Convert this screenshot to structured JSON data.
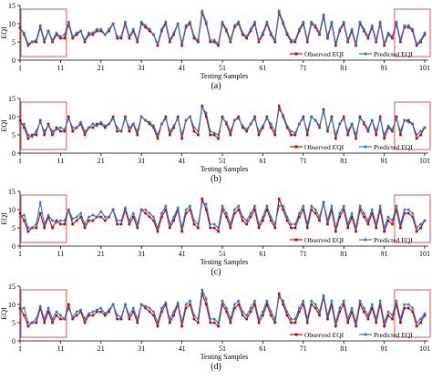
{
  "colors": {
    "observed": "#c00000",
    "predicted": "#2e75b6",
    "highlight_box": "#e06666",
    "axis": "#000000"
  },
  "chart_data": [
    {
      "type": "line",
      "panel_label": "(a)",
      "xlabel": "Testing Samples",
      "ylabel": "EQI",
      "xticks": [
        "1",
        "11",
        "21",
        "31",
        "41",
        "51",
        "61",
        "71",
        "81",
        "91",
        "101"
      ],
      "yticks": [
        "0",
        "5",
        "10",
        "15"
      ],
      "xlim": [
        1,
        101
      ],
      "ylim": [
        0,
        15
      ],
      "grid": false,
      "legend": "bottom-right",
      "highlight_ranges": [
        [
          1,
          12
        ],
        [
          94,
          103
        ]
      ],
      "series": [
        {
          "name": "Observed EQI",
          "marker": "square",
          "values": [
            9,
            7,
            4,
            5,
            5,
            9,
            5,
            8,
            5,
            7,
            6,
            6,
            10,
            6,
            7,
            8,
            5,
            7,
            7,
            8,
            8,
            7,
            8,
            10,
            6,
            6,
            10,
            6,
            8,
            5,
            10,
            9,
            8,
            7,
            4,
            8,
            10,
            5,
            7,
            10,
            4,
            9,
            10,
            6,
            5,
            13,
            10,
            5,
            5,
            4,
            10,
            8,
            5,
            9,
            10,
            7,
            6,
            8,
            10,
            5,
            7,
            10,
            7,
            5,
            13,
            10,
            7,
            5,
            5,
            8,
            10,
            5,
            10,
            9,
            7,
            12,
            6,
            10,
            4,
            8,
            10,
            5,
            8,
            4,
            10,
            8,
            6,
            9,
            5,
            10,
            4,
            7,
            6,
            10,
            5,
            9,
            9,
            8,
            4,
            5,
            7
          ]
        },
        {
          "name": "Predicted EQI",
          "marker": "diamond",
          "values": [
            8.5,
            7.5,
            4.5,
            5,
            5.5,
            9.5,
            5.5,
            8,
            5.5,
            7.5,
            6.5,
            7,
            10.5,
            6.5,
            7.5,
            8,
            5.5,
            7.5,
            7.5,
            8.5,
            8.5,
            7,
            8.5,
            10,
            6.5,
            6.5,
            10.5,
            6.5,
            8.5,
            5.5,
            10.5,
            9.5,
            8.5,
            7,
            4.5,
            8.5,
            10.5,
            5.5,
            7.5,
            10,
            4.5,
            9.5,
            10.5,
            6.5,
            5.5,
            13.5,
            10.5,
            5.5,
            5.5,
            4.5,
            10.5,
            8.5,
            5.5,
            9.5,
            10.5,
            7.5,
            6.5,
            8.5,
            10.5,
            5.5,
            7.5,
            10.5,
            7.5,
            5.5,
            13.5,
            10.5,
            7.5,
            5.5,
            5.5,
            8.5,
            10.5,
            5.5,
            10.5,
            9.5,
            7.5,
            12.5,
            6.5,
            10.5,
            4.5,
            8.5,
            10.5,
            5.5,
            8.5,
            4.5,
            10.5,
            8.5,
            6.5,
            9.5,
            5.5,
            10.5,
            4.5,
            7.5,
            6.5,
            10.5,
            5.5,
            9.5,
            9.5,
            8.5,
            4.5,
            5.5,
            7.5
          ]
        }
      ]
    },
    {
      "type": "line",
      "panel_label": "(b)",
      "xlabel": "Testing Samples",
      "ylabel": "EQI",
      "xticks": [
        "1",
        "11",
        "21",
        "31",
        "41",
        "51",
        "61",
        "71",
        "81",
        "91",
        "101"
      ],
      "yticks": [
        "0",
        "5",
        "10",
        "15"
      ],
      "xlim": [
        1,
        101
      ],
      "ylim": [
        0,
        15
      ],
      "grid": false,
      "legend": "bottom-right",
      "highlight_ranges": [
        [
          1,
          12
        ],
        [
          94,
          103
        ]
      ],
      "series": [
        {
          "name": "Observed EQI",
          "marker": "square",
          "values": [
            9,
            7,
            4,
            5,
            5,
            9,
            5,
            8,
            5,
            7,
            6,
            6,
            10,
            6,
            7,
            8,
            5,
            7,
            7,
            8,
            8,
            7,
            8,
            10,
            6,
            6,
            10,
            6,
            8,
            5,
            10,
            9,
            8,
            7,
            4,
            8,
            10,
            5,
            7,
            10,
            4,
            9,
            10,
            6,
            5,
            13,
            10,
            5,
            5,
            4,
            10,
            8,
            5,
            9,
            10,
            7,
            6,
            8,
            10,
            5,
            7,
            10,
            7,
            5,
            13,
            10,
            7,
            5,
            5,
            8,
            10,
            5,
            10,
            9,
            7,
            12,
            6,
            10,
            4,
            8,
            10,
            5,
            8,
            4,
            10,
            8,
            6,
            9,
            5,
            10,
            4,
            7,
            6,
            10,
            5,
            9,
            9,
            8,
            4,
            5,
            7
          ]
        },
        {
          "name": "Predicted EQI",
          "marker": "diamond",
          "values": [
            8,
            8,
            5,
            4.5,
            6,
            8.5,
            6,
            7.5,
            6,
            6.5,
            7,
            6.5,
            9.5,
            7,
            7,
            8.5,
            6,
            7,
            8,
            7.5,
            8.5,
            7.5,
            8,
            9.5,
            7,
            6,
            9.5,
            7,
            8,
            6,
            10,
            9,
            8.5,
            7.5,
            5,
            8,
            9.5,
            6,
            7.5,
            9.5,
            5,
            9,
            10,
            7,
            6,
            12.5,
            11,
            6,
            5.5,
            5,
            9.5,
            8.5,
            6,
            9,
            9.5,
            7.5,
            6.5,
            8,
            9.5,
            6,
            7.5,
            9.5,
            8,
            6,
            12,
            10.5,
            7.5,
            6,
            5.5,
            8,
            9.5,
            6,
            10,
            9,
            7.5,
            11.5,
            6.5,
            9.5,
            5,
            8,
            9.5,
            6,
            8,
            5,
            9.5,
            8.5,
            6.5,
            9,
            6,
            9.5,
            5,
            7.5,
            6.5,
            9.5,
            6,
            9,
            8.5,
            8,
            5,
            6,
            7
          ]
        }
      ]
    },
    {
      "type": "line",
      "panel_label": "(c)",
      "xlabel": "Testing Samples",
      "ylabel": "EQI",
      "xticks": [
        "1",
        "11",
        "21",
        "31",
        "41",
        "51",
        "61",
        "71",
        "81",
        "91",
        "101"
      ],
      "yticks": [
        "0",
        "5",
        "10",
        "15"
      ],
      "xlim": [
        1,
        101
      ],
      "ylim": [
        0,
        15
      ],
      "grid": false,
      "legend": "bottom-right",
      "highlight_ranges": [
        [
          1,
          12
        ],
        [
          94,
          103
        ]
      ],
      "series": [
        {
          "name": "Observed EQI",
          "marker": "square",
          "values": [
            9,
            7,
            4,
            5,
            5,
            9,
            5,
            8,
            5,
            7,
            6,
            6,
            10,
            6,
            7,
            8,
            5,
            7,
            7,
            8,
            8,
            7,
            8,
            10,
            6,
            6,
            10,
            6,
            8,
            5,
            10,
            9,
            8,
            7,
            4,
            8,
            10,
            5,
            7,
            10,
            4,
            9,
            10,
            6,
            5,
            13,
            10,
            5,
            5,
            4,
            10,
            8,
            5,
            9,
            10,
            7,
            6,
            8,
            10,
            5,
            7,
            10,
            7,
            5,
            13,
            10,
            7,
            5,
            5,
            8,
            10,
            5,
            10,
            9,
            7,
            12,
            6,
            10,
            4,
            8,
            10,
            5,
            8,
            4,
            10,
            8,
            6,
            9,
            5,
            10,
            4,
            7,
            6,
            10,
            5,
            9,
            9,
            8,
            4,
            5,
            7
          ]
        },
        {
          "name": "Predicted EQI",
          "marker": "diamond",
          "values": [
            8,
            8.5,
            5,
            5,
            6,
            12,
            6,
            8.5,
            7,
            6.5,
            7,
            7,
            10,
            7.5,
            8,
            9,
            6,
            8,
            8.5,
            8,
            9.5,
            8,
            8,
            10,
            7,
            7,
            10.5,
            7,
            9,
            6,
            10,
            10,
            9,
            8,
            5,
            9,
            11,
            6,
            8,
            10.5,
            5,
            10,
            11,
            7,
            6,
            12,
            11.5,
            6,
            6,
            5,
            11,
            9,
            6,
            10,
            11,
            8,
            7,
            9,
            11,
            6,
            8,
            11,
            8,
            6,
            11,
            11,
            8,
            6,
            6,
            9,
            11,
            6,
            11,
            10,
            8,
            12,
            7,
            11,
            5,
            9,
            11,
            6,
            9,
            5,
            11,
            9,
            7,
            10,
            6,
            11,
            5,
            8,
            7,
            11,
            6,
            10,
            10,
            9,
            5,
            6,
            7
          ]
        }
      ]
    },
    {
      "type": "line",
      "panel_label": "(d)",
      "xlabel": "Testing Samples",
      "ylabel": "EQI",
      "xticks": [
        "1",
        "11",
        "21",
        "31",
        "41",
        "51",
        "61",
        "71",
        "81",
        "91",
        "101"
      ],
      "yticks": [
        "0",
        "5",
        "10",
        "15"
      ],
      "xlim": [
        1,
        101
      ],
      "ylim": [
        0,
        15
      ],
      "grid": false,
      "legend": "bottom-right",
      "highlight_ranges": [
        [
          1,
          12
        ],
        [
          94,
          103
        ]
      ],
      "series": [
        {
          "name": "Observed EQI",
          "marker": "square",
          "values": [
            9,
            7,
            4,
            5,
            5,
            9,
            5,
            8,
            5,
            7,
            6,
            6,
            10,
            6,
            7,
            8,
            5,
            7,
            7,
            8,
            8,
            7,
            8,
            10,
            6,
            6,
            10,
            6,
            8,
            5,
            10,
            9,
            8,
            7,
            4,
            8,
            10,
            5,
            7,
            10,
            4,
            9,
            10,
            6,
            5,
            13,
            10,
            5,
            5,
            4,
            10,
            8,
            5,
            9,
            10,
            7,
            6,
            8,
            10,
            5,
            7,
            10,
            7,
            5,
            13,
            10,
            7,
            5,
            5,
            8,
            10,
            5,
            10,
            9,
            7,
            12,
            6,
            10,
            4,
            8,
            10,
            5,
            8,
            4,
            10,
            8,
            6,
            9,
            5,
            10,
            4,
            7,
            6,
            10,
            5,
            9,
            9,
            8,
            4,
            5,
            7
          ]
        },
        {
          "name": "Predicted EQI",
          "marker": "diamond",
          "values": [
            8.5,
            9,
            5,
            5,
            6,
            9.5,
            6,
            9,
            6,
            8,
            7,
            6,
            9,
            6.5,
            8,
            8.5,
            6,
            7.5,
            8,
            8.5,
            9,
            7.5,
            8.5,
            10,
            7,
            6.5,
            10,
            7,
            9,
            6,
            10,
            9.5,
            9,
            8,
            5,
            9,
            10.5,
            6,
            8,
            10.5,
            5,
            10,
            11,
            7,
            6,
            14,
            11.5,
            6,
            6,
            5,
            11,
            9,
            6,
            10,
            11,
            8,
            7,
            9,
            11,
            6,
            8,
            11,
            8,
            6,
            12,
            11,
            8,
            6,
            6,
            9,
            11,
            6,
            11,
            10,
            8,
            12.5,
            7,
            11,
            5,
            9,
            11,
            6,
            9,
            5,
            11,
            9,
            7,
            10,
            6,
            11,
            5,
            8,
            7,
            11,
            6,
            10,
            10,
            9,
            5,
            6,
            7.5
          ]
        }
      ]
    }
  ]
}
